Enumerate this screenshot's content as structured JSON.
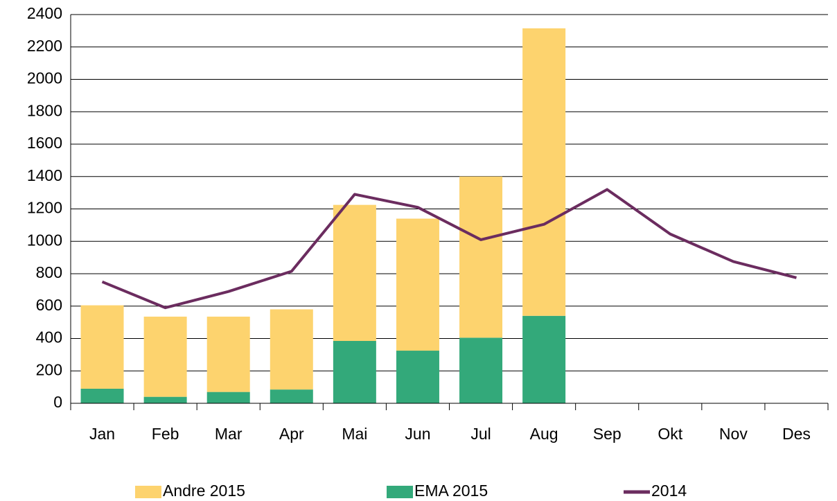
{
  "chart_data": {
    "type": "bar",
    "stacked": true,
    "categories": [
      "Jan",
      "Feb",
      "Mar",
      "Apr",
      "Mai",
      "Jun",
      "Jul",
      "Aug",
      "Sep",
      "Okt",
      "Nov",
      "Des"
    ],
    "series": [
      {
        "name": "Andre 2015",
        "color": "#fdd36e",
        "values": [
          515,
          495,
          465,
          495,
          840,
          815,
          995,
          1775,
          null,
          null,
          null,
          null
        ]
      },
      {
        "name": "EMA 2015",
        "color": "#33a97a",
        "values": [
          90,
          40,
          70,
          85,
          385,
          325,
          405,
          540,
          null,
          null,
          null,
          null
        ]
      },
      {
        "name": "2014",
        "color": "#6b2c5f",
        "type": "line",
        "values": [
          750,
          590,
          690,
          815,
          1290,
          1210,
          1010,
          1105,
          1320,
          1045,
          875,
          775
        ]
      }
    ],
    "ylim": [
      0,
      2400
    ],
    "yticks": [
      0,
      200,
      400,
      600,
      800,
      1000,
      1200,
      1400,
      1600,
      1800,
      2000,
      2200,
      2400
    ],
    "grid": true,
    "legend": "bottom"
  }
}
